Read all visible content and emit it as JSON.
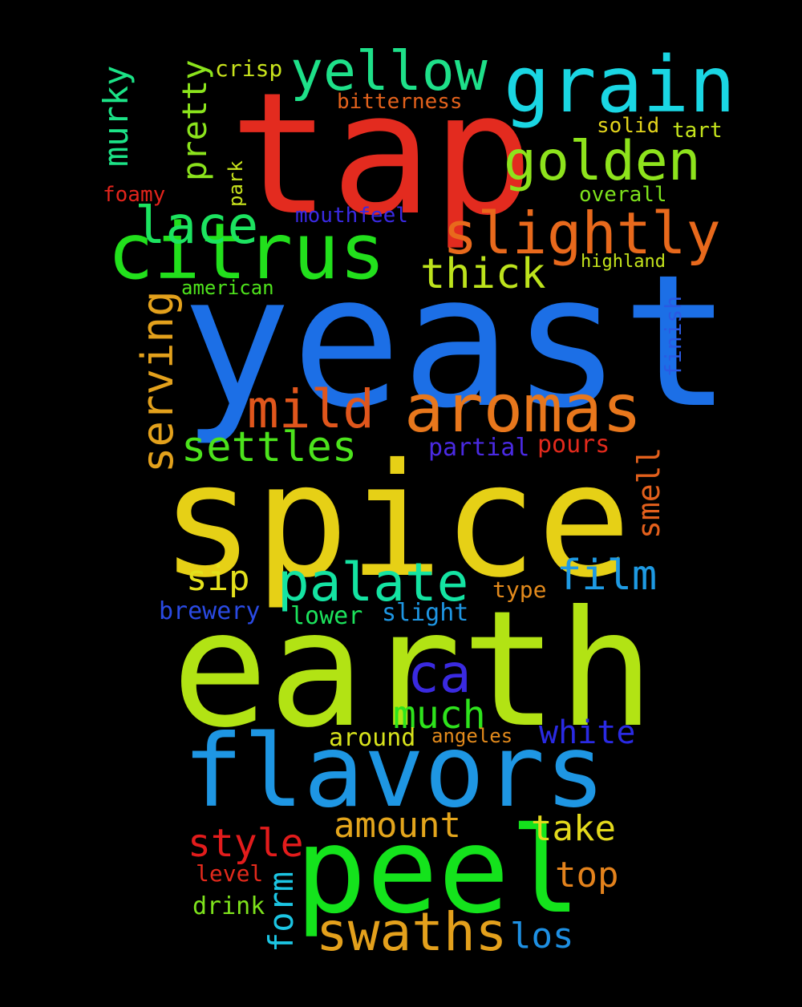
{
  "background": "#000000",
  "words": [
    {
      "text": "tap",
      "color": "#e32b1f"
    },
    {
      "text": "yeast",
      "color": "#1c6fe6"
    },
    {
      "text": "spice",
      "color": "#e6d016"
    },
    {
      "text": "earth",
      "color": "#b2e314"
    },
    {
      "text": "flavors",
      "color": "#1e96e3"
    },
    {
      "text": "peel",
      "color": "#14e31c"
    },
    {
      "text": "citrus",
      "color": "#22e01c"
    },
    {
      "text": "grain",
      "color": "#1ad6e3"
    },
    {
      "text": "aromas",
      "color": "#e8771c"
    },
    {
      "text": "yellow",
      "color": "#1ee089"
    },
    {
      "text": "golden",
      "color": "#8ee31c"
    },
    {
      "text": "slightly",
      "color": "#e8691c"
    },
    {
      "text": "palate",
      "color": "#14e3a2"
    },
    {
      "text": "mild",
      "color": "#e0561c"
    },
    {
      "text": "lace",
      "color": "#1ce360"
    },
    {
      "text": "serving",
      "color": "#e3a11c"
    },
    {
      "text": "swaths",
      "color": "#e3a01c"
    },
    {
      "text": "thick",
      "color": "#bde31c"
    },
    {
      "text": "settles",
      "color": "#4ce31c"
    },
    {
      "text": "ca",
      "color": "#3a2ae0"
    },
    {
      "text": "film",
      "color": "#1e9ae3"
    },
    {
      "text": "pretty",
      "color": "#8be31c"
    },
    {
      "text": "murky",
      "color": "#1ce387"
    },
    {
      "text": "much",
      "color": "#2ee31c"
    },
    {
      "text": "amount",
      "color": "#e3a51c"
    },
    {
      "text": "style",
      "color": "#e31c1c"
    },
    {
      "text": "take",
      "color": "#e3d91c"
    },
    {
      "text": "top",
      "color": "#e3821c"
    },
    {
      "text": "white",
      "color": "#2a2ae3"
    },
    {
      "text": "sip",
      "color": "#e3e01c"
    },
    {
      "text": "form",
      "color": "#1cc5e3"
    },
    {
      "text": "smell",
      "color": "#e3601c"
    },
    {
      "text": "los",
      "color": "#1e90e3"
    },
    {
      "text": "brewery",
      "color": "#2a4ae3"
    },
    {
      "text": "lower",
      "color": "#1ce35c"
    },
    {
      "text": "slight",
      "color": "#1e96e3"
    },
    {
      "text": "partial",
      "color": "#4a2ae3"
    },
    {
      "text": "pours",
      "color": "#e32a1c"
    },
    {
      "text": "type",
      "color": "#e38a1c"
    },
    {
      "text": "around",
      "color": "#d8e31c"
    },
    {
      "text": "angeles",
      "color": "#e38a1c"
    },
    {
      "text": "drink",
      "color": "#7ee31c"
    },
    {
      "text": "level",
      "color": "#e32a1c"
    },
    {
      "text": "crisp",
      "color": "#c8e31c"
    },
    {
      "text": "bitterness",
      "color": "#e3621c"
    },
    {
      "text": "solid",
      "color": "#e3d41c"
    },
    {
      "text": "tart",
      "color": "#c4e31c"
    },
    {
      "text": "overall",
      "color": "#7ee31c"
    },
    {
      "text": "highland",
      "color": "#c4e31c"
    },
    {
      "text": "foamy",
      "color": "#e3241c"
    },
    {
      "text": "park",
      "color": "#c8e31c"
    },
    {
      "text": "mouthfeel",
      "color": "#3a2ae3"
    },
    {
      "text": "american",
      "color": "#4ee31c"
    },
    {
      "text": "finish",
      "color": "#2a5ae3"
    }
  ]
}
